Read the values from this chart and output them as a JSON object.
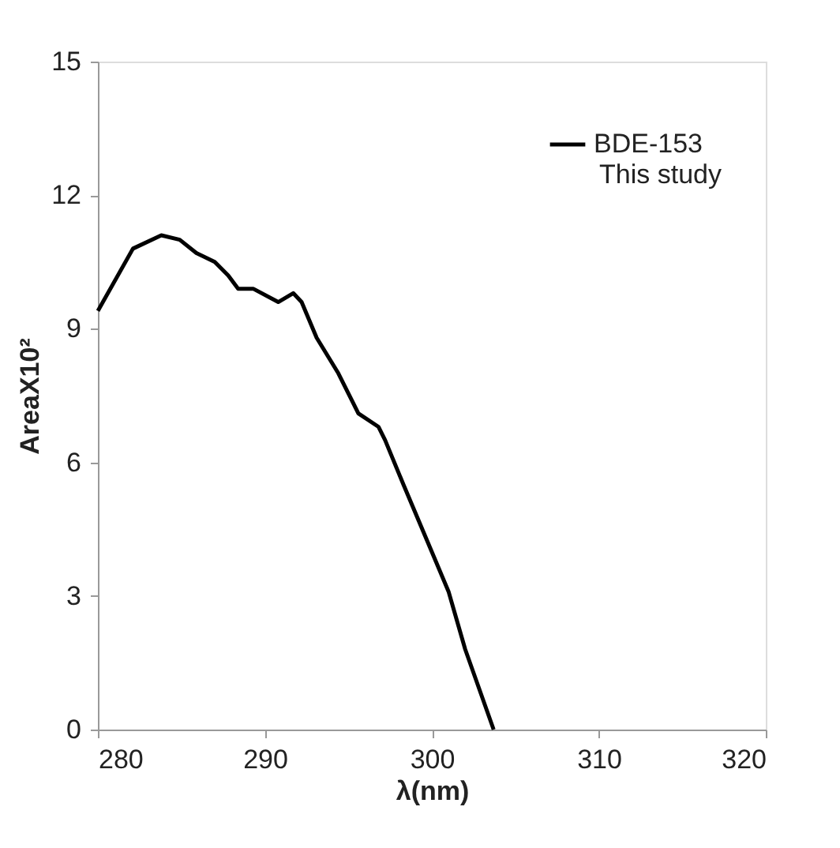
{
  "chart_data": {
    "type": "line",
    "xlabel": "λ(nm)",
    "ylabel": "AreaX10²",
    "x": [
      280.0,
      282.1,
      283.8,
      284.9,
      285.9,
      287.0,
      287.8,
      288.4,
      289.3,
      290.8,
      291.7,
      292.2,
      293.1,
      294.4,
      295.6,
      296.8,
      297.2,
      298.3,
      300.1,
      301.0,
      302.0,
      303.7
    ],
    "series": [
      {
        "name": "BDE-153",
        "color": "#000000",
        "values": [
          9.4,
          10.8,
          11.1,
          11.0,
          10.7,
          10.5,
          10.2,
          9.9,
          9.9,
          9.6,
          9.8,
          9.6,
          8.8,
          8.0,
          7.1,
          6.8,
          6.5,
          5.5,
          3.9,
          3.1,
          1.8,
          0.0
        ]
      }
    ],
    "xlim": [
      280,
      320
    ],
    "xticks": [
      280,
      290,
      300,
      310,
      320
    ],
    "ylim": [
      0,
      15
    ],
    "yticks": [
      0,
      3,
      6,
      9,
      12,
      15
    ],
    "annotations": [
      "This study"
    ],
    "legend": "top right",
    "grid": false,
    "marker": "none",
    "line_style": "solid"
  }
}
